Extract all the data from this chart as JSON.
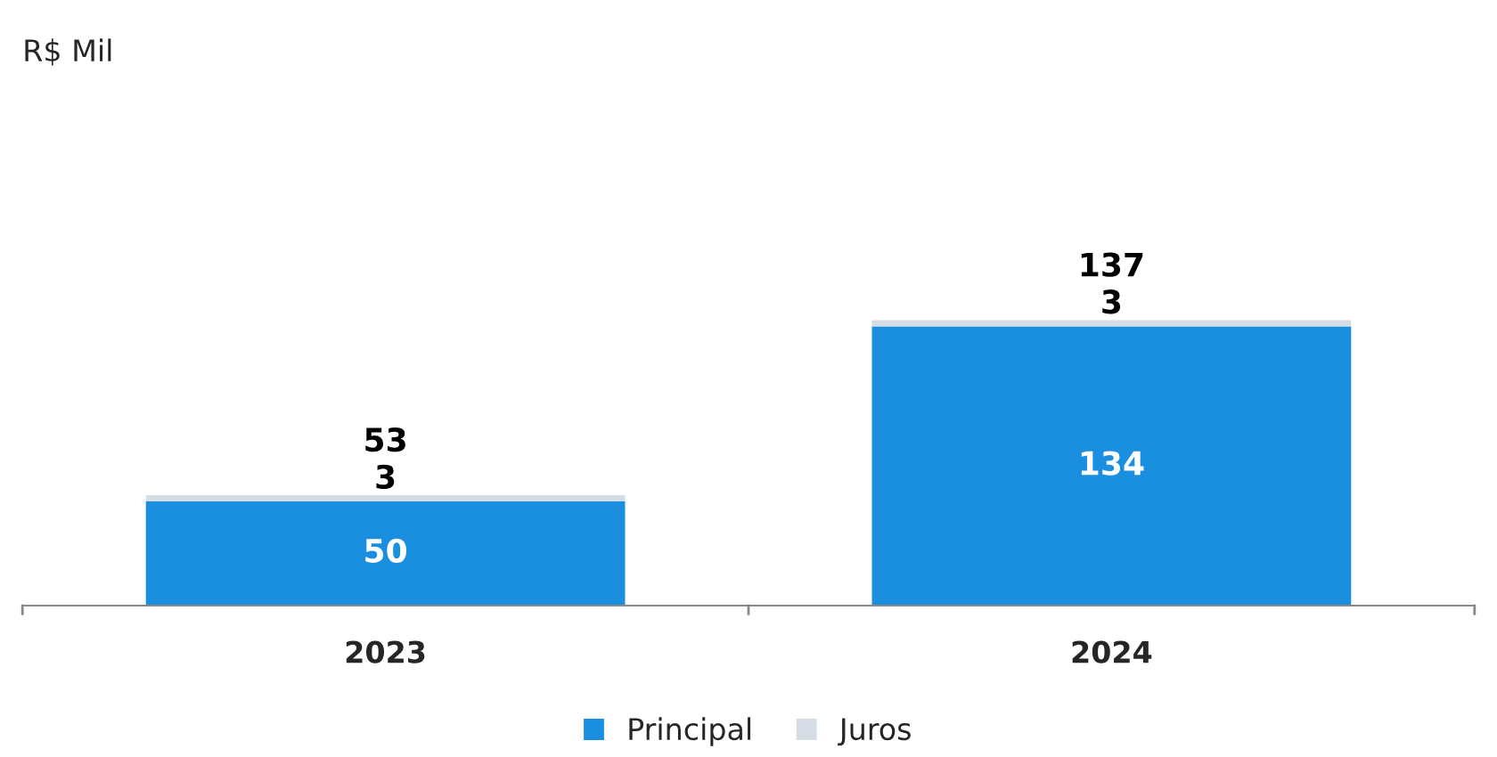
{
  "chart_data": {
    "type": "bar",
    "title": "R$ Mil",
    "categories": [
      "2023",
      "2024"
    ],
    "stacked": true,
    "series": [
      {
        "name": "Principal",
        "color": "#1a8fe0",
        "values": [
          50,
          134
        ]
      },
      {
        "name": "Juros",
        "color": "#d6dce4",
        "values": [
          3,
          3
        ]
      }
    ],
    "data_labels": true,
    "totals": [
      "53",
      "137"
    ],
    "legend": "bottom",
    "grid": false
  }
}
